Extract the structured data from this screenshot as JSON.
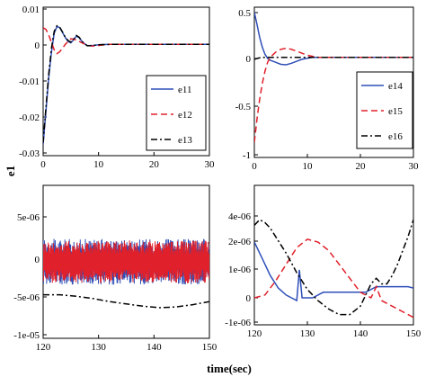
{
  "figure": {
    "ylabel": "e1",
    "xlabel": "time(sec)"
  },
  "chart_data": [
    {
      "type": "line",
      "panel": "top-left",
      "xlim": [
        0,
        30
      ],
      "ylim": [
        -0.03,
        0.01
      ],
      "xticks": [
        "0",
        "10",
        "20",
        "30"
      ],
      "yticks": [
        "0.01",
        "0",
        "-0.01",
        "-0.02",
        "-0.03"
      ],
      "legend_position": "bottom-right",
      "series": [
        {
          "name": "e11",
          "color": "#2f4fb8",
          "dash": "solid",
          "x": [
            0,
            0.5,
            1,
            1.5,
            2,
            2.5,
            3,
            3.5,
            4,
            4.5,
            5,
            5.5,
            6,
            6.5,
            7,
            7.5,
            8,
            9,
            10,
            12,
            14,
            18,
            22,
            26,
            30
          ],
          "y": [
            -0.027,
            -0.018,
            -0.009,
            -0.002,
            0.003,
            0.0048,
            0.0045,
            0.0032,
            0.0018,
            0.0008,
            0.0004,
            0.0012,
            0.0022,
            0.0018,
            0.0008,
            0.0001,
            -0.0004,
            -0.0003,
            -0.0001,
            0.0,
            0.0,
            0.0,
            0.0,
            0.0,
            0.0
          ]
        },
        {
          "name": "e12",
          "color": "#e0202a",
          "dash": "dashed",
          "x": [
            0,
            0.5,
            1,
            1.5,
            2,
            2.5,
            3,
            3.5,
            4,
            5,
            6,
            7,
            8,
            9,
            10,
            12,
            14,
            18,
            22,
            26,
            30
          ],
          "y": [
            0.0045,
            0.004,
            0.0025,
            0.0005,
            -0.0015,
            -0.0025,
            -0.002,
            -0.001,
            0.0,
            0.0015,
            0.0012,
            0.0004,
            -0.0003,
            -0.0005,
            -0.0003,
            0.0,
            0.0,
            0.0,
            0.0,
            0.0,
            0.0
          ]
        },
        {
          "name": "e13",
          "color": "#000000",
          "dash": "dashdot",
          "x": [
            0,
            0.5,
            1,
            1.5,
            2,
            2.5,
            3,
            3.5,
            4,
            4.5,
            5,
            5.5,
            6,
            6.5,
            7,
            7.5,
            8,
            9,
            10,
            12,
            14,
            18,
            22,
            26,
            30
          ],
          "y": [
            -0.0265,
            -0.017,
            -0.008,
            -0.001,
            0.0035,
            0.005,
            0.0046,
            0.0033,
            0.0019,
            0.001,
            0.0006,
            0.0014,
            0.0024,
            0.0019,
            0.0008,
            0.0001,
            -0.0004,
            -0.0003,
            -0.0001,
            0.0,
            0.0,
            0.0,
            0.0,
            0.0,
            0.0
          ]
        }
      ]
    },
    {
      "type": "line",
      "panel": "top-right",
      "xlim": [
        0,
        30
      ],
      "ylim": [
        -1,
        0.5
      ],
      "xticks": [
        "0",
        "10",
        "20",
        "30"
      ],
      "yticks": [
        "0.5",
        "0",
        "-0.5",
        "-1"
      ],
      "legend_position": "bottom-right",
      "series": [
        {
          "name": "e14",
          "color": "#2f4fb8",
          "dash": "solid",
          "x": [
            0,
            0.5,
            1,
            1.5,
            2,
            2.5,
            3,
            4,
            5,
            6,
            7,
            8,
            9,
            10,
            11,
            12,
            14,
            18,
            22,
            26,
            30
          ],
          "y": [
            0.45,
            0.33,
            0.2,
            0.1,
            0.03,
            -0.01,
            -0.03,
            -0.05,
            -0.07,
            -0.075,
            -0.06,
            -0.04,
            -0.02,
            -0.01,
            0.0,
            0.0,
            0.0,
            0.0,
            0.0,
            0.0,
            0.0
          ]
        },
        {
          "name": "e15",
          "color": "#e0202a",
          "dash": "dashed",
          "x": [
            0,
            0.5,
            1,
            1.5,
            2,
            2.5,
            3,
            4,
            5,
            6,
            7,
            8,
            9,
            10,
            11,
            12,
            14,
            18,
            22,
            26,
            30
          ],
          "y": [
            -0.85,
            -0.62,
            -0.42,
            -0.26,
            -0.14,
            -0.05,
            0.0,
            0.05,
            0.08,
            0.09,
            0.08,
            0.06,
            0.04,
            0.02,
            0.01,
            0.0,
            0.0,
            0.0,
            0.0,
            0.0,
            0.0
          ]
        },
        {
          "name": "e16",
          "color": "#000000",
          "dash": "dashdot",
          "x": [
            0,
            0.5,
            1,
            1.5,
            2,
            3,
            4,
            6,
            8,
            10,
            14,
            18,
            22,
            26,
            30
          ],
          "y": [
            -0.02,
            -0.012,
            -0.006,
            -0.002,
            0.0,
            0.0,
            0.0,
            0.0,
            0.0,
            0.0,
            0.0,
            0.0,
            0.0,
            0.0,
            0.0
          ]
        }
      ]
    },
    {
      "type": "line",
      "panel": "bottom-left",
      "xlim": [
        120,
        150
      ],
      "ylim": [
        -1e-05,
        1e-05
      ],
      "xticks": [
        "120",
        "130",
        "140",
        "150"
      ],
      "yticks": [
        "5e-06",
        "0",
        "-5e-06",
        "-1e-05"
      ],
      "series": [
        {
          "name": "",
          "color": "#2f4fb8",
          "dash": "solid",
          "oscillating": true,
          "x": [
            120,
            150
          ],
          "center": [
            0,
            0
          ],
          "amplitude": [
            3e-06,
            3e-06
          ]
        },
        {
          "name": "",
          "color": "#e0202a",
          "dash": "solid",
          "oscillating": true,
          "x": [
            120,
            150
          ],
          "center": [
            0,
            0
          ],
          "amplitude": [
            2.8e-06,
            2.8e-06
          ]
        },
        {
          "name": "",
          "color": "#000000",
          "dash": "dashdot",
          "x": [
            120,
            123,
            126,
            129,
            132,
            135,
            138,
            141,
            144,
            147,
            150
          ],
          "y": [
            -4.3e-06,
            -4.3e-06,
            -4.5e-06,
            -4.8e-06,
            -5.2e-06,
            -5.5e-06,
            -5.8e-06,
            -6e-06,
            -5.9e-06,
            -5.6e-06,
            -5.2e-06
          ]
        }
      ]
    },
    {
      "type": "line",
      "panel": "bottom-right",
      "xlim": [
        120,
        150
      ],
      "ylim": [
        -1.5e-06,
        3e-06
      ],
      "xticks": [
        "120",
        "130",
        "140",
        "150"
      ],
      "yticks": [
        "4e-06",
        "2e-06",
        "1e-06",
        "0",
        "-1e-06"
      ],
      "series": [
        {
          "name": "",
          "color": "#2f4fb8",
          "dash": "solid",
          "x": [
            120,
            121.5,
            123,
            124.5,
            126,
            127,
            128,
            128.5,
            129,
            131,
            133,
            135,
            137,
            139,
            141,
            143,
            145,
            147,
            149,
            150
          ],
          "y": [
            2e-06,
            1.4e-06,
            8e-07,
            3.5e-07,
            1e-07,
            0.0,
            -1e-07,
            1e-06,
            0.0,
            0.0,
            2e-07,
            2e-07,
            2e-07,
            2e-07,
            2e-07,
            4e-07,
            4e-07,
            4e-07,
            4e-07,
            3.5e-07
          ]
        },
        {
          "name": "",
          "color": "#e0202a",
          "dash": "dashed",
          "x": [
            120,
            122,
            124,
            126,
            128,
            130,
            132,
            134,
            136,
            138,
            140,
            142,
            143,
            144,
            146,
            148,
            150
          ],
          "y": [
            0.0,
            1e-07,
            6e-07,
            1.2e-06,
            1.8e-06,
            2.1e-06,
            2e-06,
            1.7e-06,
            1.2e-06,
            7e-07,
            2e-07,
            0.0,
            4e-07,
            -1e-07,
            -3e-07,
            -5e-07,
            -7e-07
          ]
        },
        {
          "name": "",
          "color": "#000000",
          "dash": "dashdot",
          "x": [
            120,
            121,
            122,
            123,
            124,
            126,
            128,
            130,
            132,
            134,
            136,
            138,
            140,
            141,
            142,
            143,
            144,
            145,
            146,
            147,
            148,
            149,
            150
          ],
          "y": [
            2.6e-06,
            2.8e-06,
            2.7e-06,
            2.5e-06,
            2.2e-06,
            1.6e-06,
            9e-07,
            3e-07,
            -1e-07,
            -4e-07,
            -6e-07,
            -6e-07,
            -3e-07,
            1e-07,
            5e-07,
            7e-07,
            5e-07,
            5e-07,
            8e-07,
            1.2e-06,
            1.7e-06,
            2.2e-06,
            2.8e-06
          ]
        }
      ]
    }
  ]
}
